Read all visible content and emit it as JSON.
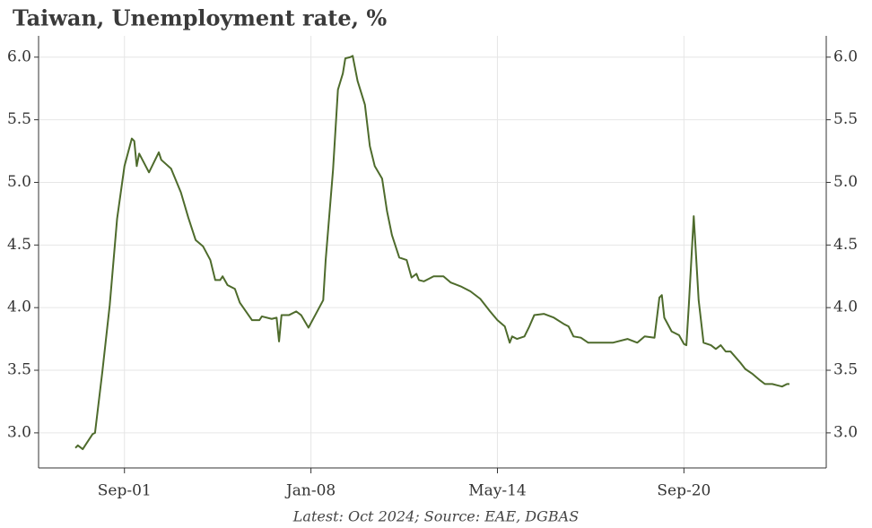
{
  "chart_data": {
    "type": "line",
    "title": "Taiwan, Unemployment rate, %",
    "source": "Latest: Oct 2024; Source: EAE, DGBAS",
    "x": [
      "2000-01",
      "2000-02",
      "2000-04",
      "2000-05",
      "2000-08",
      "2000-09",
      "2000-12",
      "2001-03",
      "2001-06",
      "2001-09",
      "2001-12",
      "2002-01",
      "2002-02",
      "2002-03",
      "2002-07",
      "2002-11",
      "2002-12",
      "2003-04",
      "2003-08",
      "2003-11",
      "2004-02",
      "2004-05",
      "2004-08",
      "2004-10",
      "2004-12",
      "2005-01",
      "2005-03",
      "2005-06",
      "2005-08",
      "2006-01",
      "2006-04",
      "2006-05",
      "2006-09",
      "2006-11",
      "2006-12",
      "2007-01",
      "2007-04",
      "2007-07",
      "2007-09",
      "2007-12",
      "2008-03",
      "2008-06",
      "2008-07",
      "2008-10",
      "2008-12",
      "2009-02",
      "2009-03",
      "2009-05",
      "2009-06",
      "2009-08",
      "2009-11",
      "2010-01",
      "2010-03",
      "2010-06",
      "2010-08",
      "2010-10",
      "2011-01",
      "2011-04",
      "2011-06",
      "2011-08",
      "2011-09",
      "2011-11",
      "2012-03",
      "2012-07",
      "2012-10",
      "2013-02",
      "2013-06",
      "2013-10",
      "2014-02",
      "2014-05",
      "2014-08",
      "2014-10",
      "2014-11",
      "2015-01",
      "2015-04",
      "2015-06",
      "2015-08",
      "2015-12",
      "2016-04",
      "2016-08",
      "2016-10",
      "2016-12",
      "2017-03",
      "2017-06",
      "2017-11",
      "2018-04",
      "2018-10",
      "2019-02",
      "2019-05",
      "2019-09",
      "2019-11",
      "2019-12",
      "2020-01",
      "2020-04",
      "2020-07",
      "2020-09",
      "2020-10",
      "2020-11",
      "2021-01",
      "2021-03",
      "2021-05",
      "2021-08",
      "2021-10",
      "2021-12",
      "2022-02",
      "2022-04",
      "2022-08",
      "2022-10",
      "2023-01",
      "2023-04",
      "2023-06",
      "2023-09",
      "2023-11",
      "2024-01",
      "2024-03",
      "2024-04"
    ],
    "series": [
      {
        "name": "Unemployment rate",
        "color": "#4e6b2c",
        "values": [
          2.88,
          2.9,
          2.87,
          2.9,
          2.99,
          3.0,
          3.49,
          4.02,
          4.71,
          5.13,
          5.35,
          5.33,
          5.13,
          5.23,
          5.08,
          5.24,
          5.18,
          5.11,
          4.92,
          4.72,
          4.54,
          4.49,
          4.38,
          4.22,
          4.22,
          4.25,
          4.18,
          4.15,
          4.04,
          3.9,
          3.9,
          3.93,
          3.91,
          3.92,
          3.73,
          3.94,
          3.94,
          3.97,
          3.94,
          3.84,
          3.95,
          4.06,
          4.38,
          5.1,
          5.74,
          5.87,
          5.99,
          6.0,
          6.01,
          5.81,
          5.62,
          5.29,
          5.13,
          5.03,
          4.77,
          4.58,
          4.4,
          4.38,
          4.24,
          4.27,
          4.22,
          4.21,
          4.25,
          4.25,
          4.2,
          4.17,
          4.13,
          4.07,
          3.97,
          3.9,
          3.85,
          3.72,
          3.77,
          3.75,
          3.77,
          3.85,
          3.94,
          3.95,
          3.92,
          3.87,
          3.85,
          3.77,
          3.76,
          3.72,
          3.72,
          3.72,
          3.75,
          3.72,
          3.77,
          3.76,
          4.08,
          4.1,
          3.92,
          3.81,
          3.78,
          3.71,
          3.7,
          4.02,
          4.73,
          4.06,
          3.72,
          3.7,
          3.67,
          3.7,
          3.65,
          3.65,
          3.56,
          3.51,
          3.47,
          3.42,
          3.39,
          3.39,
          3.38,
          3.37,
          3.39,
          3.39
        ]
      }
    ],
    "xlim": [
      "1998-10",
      "2025-07"
    ],
    "xticks": [
      {
        "value": "2001-09",
        "label": "Sep-01"
      },
      {
        "value": "2008-01",
        "label": "Jan-08"
      },
      {
        "value": "2014-05",
        "label": "May-14"
      },
      {
        "value": "2020-09",
        "label": "Sep-20"
      }
    ],
    "ylim": [
      2.72,
      6.17
    ],
    "yticks": [
      {
        "value": 3,
        "label": "3.0"
      },
      3.5,
      {
        "value": 4,
        "label": "4.0"
      },
      4.5,
      {
        "value": 5,
        "label": "5.0"
      },
      5.5,
      {
        "value": 6,
        "label": "6.0"
      }
    ],
    "grid": true
  }
}
